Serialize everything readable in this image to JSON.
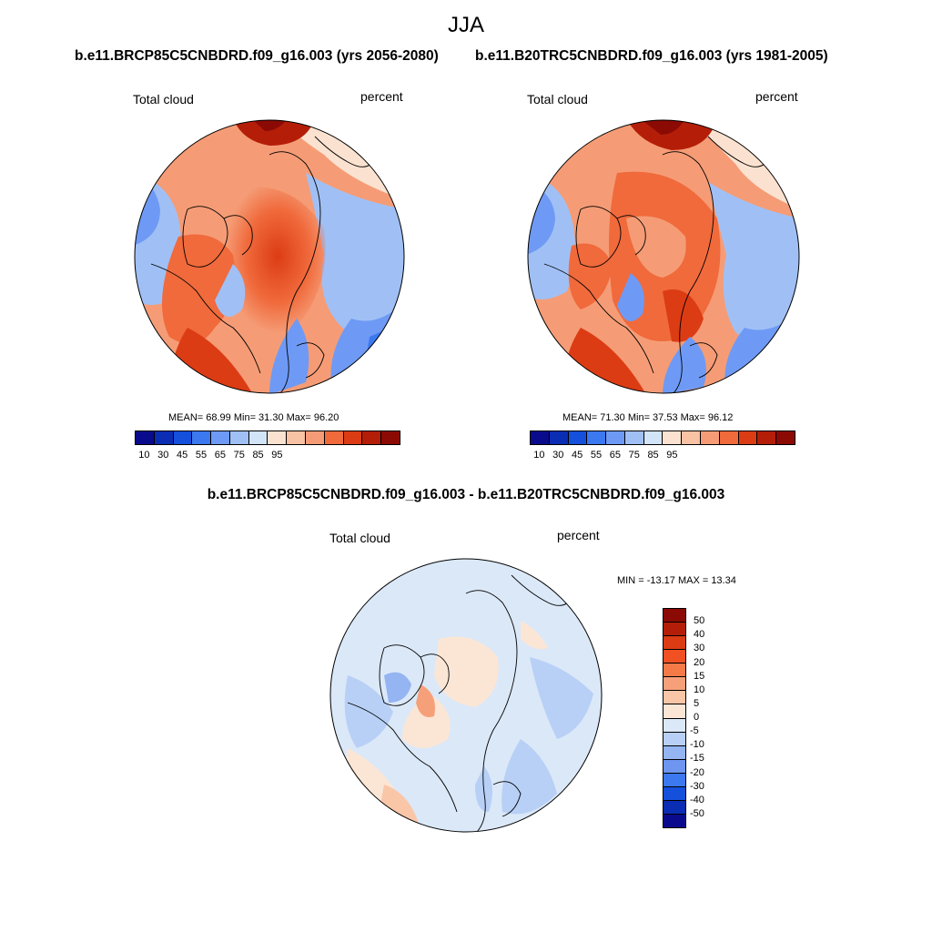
{
  "season": "JJA",
  "panels": [
    {
      "case_title": "b.e11.BRCP85C5CNBDRD.f09_g16.003 (yrs 2056-2080)",
      "variable": "Total cloud",
      "units": "percent",
      "stats": "MEAN=  68.99  Min=  31.30  Max=  96.20",
      "colorbar_ticks": [
        "10",
        "30",
        "45",
        "55",
        "65",
        "75",
        "85",
        "95"
      ]
    },
    {
      "case_title": "b.e11.B20TRC5CNBDRD.f09_g16.003 (yrs 1981-2005)",
      "variable": "Total cloud",
      "units": "percent",
      "stats": "MEAN=  71.30  Min=  37.53  Max=  96.12",
      "colorbar_ticks": [
        "10",
        "30",
        "45",
        "55",
        "65",
        "75",
        "85",
        "95"
      ]
    }
  ],
  "diff_panel": {
    "title": "b.e11.BRCP85C5CNBDRD.f09_g16.003 - b.e11.B20TRC5CNBDRD.f09_g16.003",
    "variable": "Total cloud",
    "units": "percent",
    "stats": "MIN = -13.17 MAX =  13.34",
    "colorbar_ticks": [
      "50",
      "40",
      "30",
      "20",
      "15",
      "10",
      "5",
      "0",
      "-5",
      "-10",
      "-15",
      "-20",
      "-30",
      "-40",
      "-50"
    ]
  },
  "colors": {
    "abs_scale": [
      "#0a0a8c",
      "#0a2db4",
      "#1450dc",
      "#3c78f0",
      "#6e9af5",
      "#a0c0f5",
      "#d2e4f8",
      "#fbe2d0",
      "#f8c2a4",
      "#f59c76",
      "#f06a3c",
      "#dc3c14",
      "#b41e08",
      "#8c0a04"
    ],
    "diff_scale": [
      "#8c0a04",
      "#b41e08",
      "#dc3c14",
      "#f05022",
      "#f47a48",
      "#f6a07a",
      "#f9c6a8",
      "#fbe6d6",
      "#dbe8f8",
      "#b8d0f6",
      "#94b4f2",
      "#6e96f0",
      "#3c78f0",
      "#1450dc",
      "#0a2db4",
      "#0a0a8c"
    ]
  }
}
